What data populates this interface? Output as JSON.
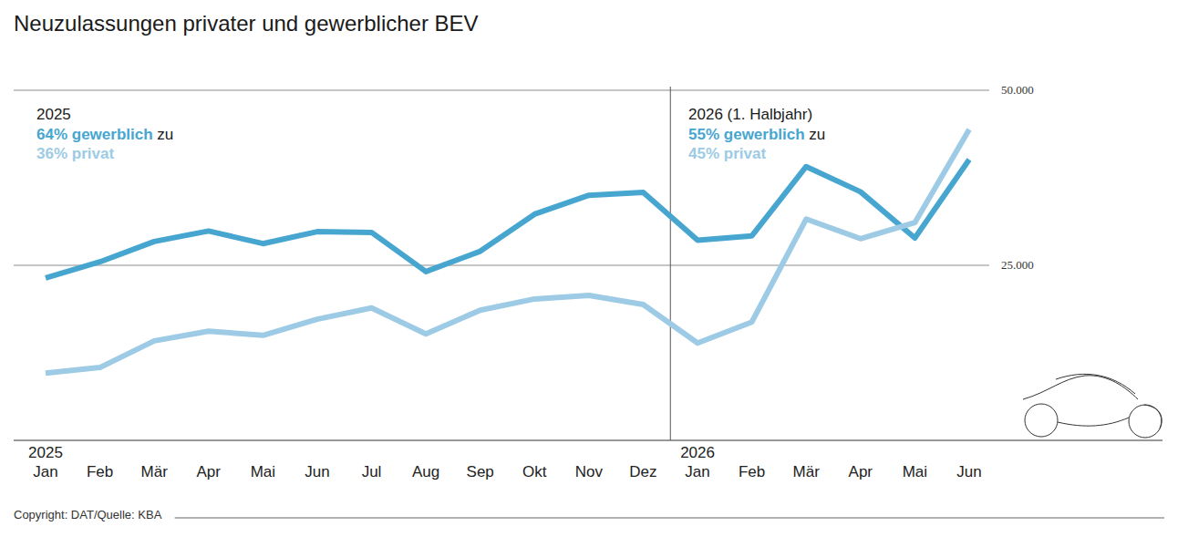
{
  "chart_data": {
    "type": "line",
    "title": "Neuzulassungen privater und gewerblicher BEV",
    "categories": [
      "Jan",
      "Feb",
      "Mär",
      "Apr",
      "Mai",
      "Jun",
      "Jul",
      "Aug",
      "Sep",
      "Okt",
      "Nov",
      "Dez",
      "Jan",
      "Feb",
      "Mär",
      "Apr",
      "Mai",
      "Jun"
    ],
    "x_year_labels": [
      {
        "label": "2025",
        "category_index": 0
      },
      {
        "label": "2026",
        "category_index": 12
      }
    ],
    "series": [
      {
        "name": "gewerblich",
        "color": "#47a6d0",
        "values": [
          23200,
          25500,
          28400,
          29900,
          28100,
          29800,
          29700,
          24100,
          27000,
          32300,
          35000,
          35400,
          28600,
          29200,
          39100,
          35500,
          28900,
          40100
        ]
      },
      {
        "name": "privat",
        "color": "#9dcbe5",
        "values": [
          9600,
          10400,
          14200,
          15600,
          15000,
          17300,
          18900,
          15200,
          18600,
          20200,
          20700,
          19400,
          13900,
          16900,
          31600,
          28800,
          31100,
          44400
        ]
      }
    ],
    "ylim": [
      0,
      50000
    ],
    "yticks": [
      {
        "value": 25000,
        "label": "25.000"
      },
      {
        "value": 50000,
        "label": "50.000"
      }
    ],
    "grid": true,
    "annotations": [
      {
        "heading": "2025",
        "commercial": "64% gewerblich",
        "connector": " zu",
        "private": "36% privat",
        "category_index": 0
      },
      {
        "heading": "2026 (1. Halbjahr)",
        "commercial": "55% gewerblich",
        "connector": " zu",
        "private": "45% privat",
        "category_index": 12
      }
    ],
    "source": "Copyright: DAT/Quelle: KBA"
  }
}
